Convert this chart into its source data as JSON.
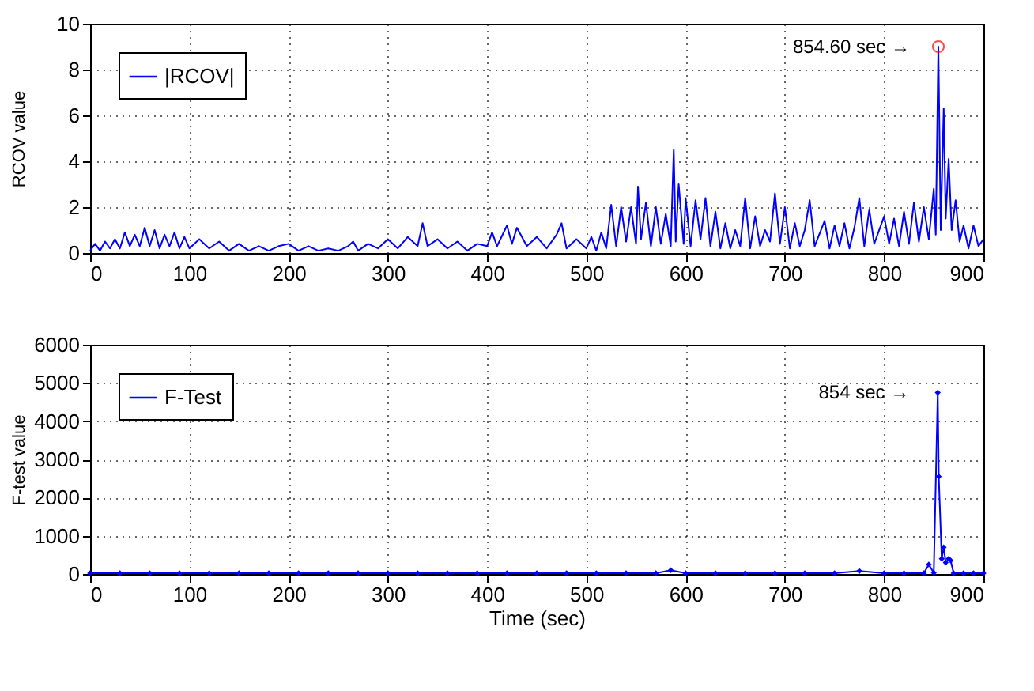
{
  "chart_data": [
    {
      "type": "line",
      "ylabel": "RCOV value",
      "xlim": [
        0,
        900
      ],
      "xticks": [
        0,
        100,
        200,
        300,
        400,
        500,
        600,
        700,
        800,
        900
      ],
      "ylim": [
        0,
        10
      ],
      "yticks": [
        0,
        2,
        4,
        6,
        8,
        10
      ],
      "grid": true,
      "legend": "top left",
      "marker": "none",
      "line_style": "solid",
      "annotations": [
        {
          "text": "854.60 sec →",
          "x": 854.6,
          "y": 9
        }
      ],
      "series": [
        {
          "name": "|RCOV|",
          "color": "#0000ff",
          "x": [
            0,
            5,
            10,
            15,
            20,
            25,
            30,
            35,
            40,
            45,
            50,
            55,
            60,
            65,
            70,
            75,
            80,
            85,
            90,
            95,
            100,
            110,
            120,
            130,
            140,
            150,
            160,
            170,
            180,
            190,
            200,
            210,
            220,
            230,
            240,
            250,
            260,
            265,
            270,
            280,
            290,
            300,
            310,
            320,
            330,
            335,
            340,
            350,
            360,
            370,
            380,
            390,
            400,
            405,
            410,
            420,
            425,
            430,
            440,
            450,
            460,
            470,
            475,
            480,
            490,
            500,
            505,
            510,
            515,
            520,
            525,
            530,
            535,
            540,
            545,
            550,
            552,
            555,
            560,
            565,
            570,
            575,
            580,
            585,
            588,
            590,
            593,
            598,
            600,
            605,
            610,
            615,
            620,
            625,
            630,
            635,
            640,
            645,
            650,
            655,
            660,
            665,
            670,
            675,
            680,
            685,
            690,
            695,
            700,
            705,
            710,
            715,
            720,
            725,
            730,
            740,
            745,
            750,
            755,
            760,
            765,
            770,
            775,
            780,
            785,
            790,
            800,
            805,
            810,
            815,
            820,
            825,
            830,
            835,
            840,
            845,
            850,
            852,
            854.6,
            857,
            860,
            862,
            865,
            868,
            872,
            876,
            880,
            885,
            890,
            895,
            900
          ],
          "values": [
            0.1,
            0.4,
            0.1,
            0.5,
            0.2,
            0.6,
            0.2,
            0.9,
            0.3,
            0.8,
            0.3,
            1.1,
            0.3,
            1.0,
            0.2,
            0.8,
            0.3,
            0.9,
            0.2,
            0.7,
            0.2,
            0.6,
            0.2,
            0.5,
            0.1,
            0.4,
            0.1,
            0.3,
            0.1,
            0.3,
            0.4,
            0.1,
            0.3,
            0.1,
            0.2,
            0.1,
            0.3,
            0.5,
            0.1,
            0.4,
            0.2,
            0.6,
            0.2,
            0.7,
            0.3,
            1.3,
            0.3,
            0.6,
            0.2,
            0.5,
            0.1,
            0.4,
            0.3,
            0.9,
            0.3,
            1.2,
            0.4,
            1.1,
            0.3,
            0.7,
            0.2,
            0.8,
            1.3,
            0.2,
            0.6,
            0.2,
            0.7,
            0.1,
            0.9,
            0.2,
            2.1,
            0.3,
            2.0,
            0.5,
            2.0,
            0.4,
            2.9,
            0.6,
            2.2,
            0.3,
            2.0,
            0.4,
            1.7,
            0.3,
            4.5,
            0.5,
            3.0,
            0.4,
            2.4,
            0.3,
            2.3,
            0.6,
            2.4,
            0.3,
            1.8,
            0.2,
            1.3,
            0.2,
            1.0,
            0.3,
            2.4,
            0.2,
            1.6,
            0.3,
            1.0,
            0.5,
            2.6,
            0.4,
            2.0,
            0.2,
            1.3,
            0.3,
            1.0,
            2.3,
            0.3,
            1.4,
            0.2,
            1.2,
            0.3,
            1.3,
            0.2,
            1.1,
            2.4,
            0.3,
            1.9,
            0.4,
            1.6,
            0.4,
            1.5,
            0.3,
            1.8,
            0.4,
            2.2,
            0.5,
            2.0,
            0.6,
            2.8,
            0.8,
            9.0,
            1.0,
            6.3,
            1.5,
            4.1,
            1.0,
            2.3,
            0.5,
            1.2,
            0.2,
            1.2,
            0.3,
            0.6
          ]
        },
        {
          "type": "scatter",
          "color": "#ff0000",
          "marker": "circle",
          "x": [
            854.6
          ],
          "values": [
            9.0
          ]
        }
      ]
    },
    {
      "type": "line",
      "xlabel": "Time (sec)",
      "ylabel": "F-test value",
      "xlim": [
        0,
        900
      ],
      "xticks": [
        0,
        100,
        200,
        300,
        400,
        500,
        600,
        700,
        800,
        900
      ],
      "ylim": [
        0,
        6000
      ],
      "yticks": [
        0,
        1000,
        2000,
        3000,
        4000,
        5000,
        6000
      ],
      "grid": true,
      "legend": "top left",
      "marker": "diamond",
      "line_style": "solid",
      "annotations": [
        {
          "text": "854 sec →",
          "x": 854,
          "y": 4750
        }
      ],
      "series": [
        {
          "name": "F-Test",
          "color": "#0000ff",
          "x": [
            0,
            30,
            60,
            90,
            120,
            150,
            180,
            210,
            240,
            270,
            300,
            330,
            360,
            390,
            420,
            450,
            480,
            510,
            540,
            570,
            585,
            600,
            630,
            660,
            690,
            720,
            750,
            775,
            800,
            820,
            840,
            845,
            850,
            854,
            855,
            858,
            860,
            862,
            865,
            867,
            870,
            880,
            890,
            900
          ],
          "values": [
            20,
            20,
            20,
            20,
            20,
            20,
            20,
            20,
            20,
            20,
            20,
            20,
            20,
            20,
            20,
            20,
            20,
            20,
            20,
            20,
            100,
            20,
            20,
            20,
            20,
            20,
            20,
            80,
            20,
            20,
            20,
            250,
            30,
            4750,
            2550,
            400,
            700,
            300,
            400,
            350,
            20,
            20,
            20,
            20
          ]
        }
      ]
    }
  ]
}
